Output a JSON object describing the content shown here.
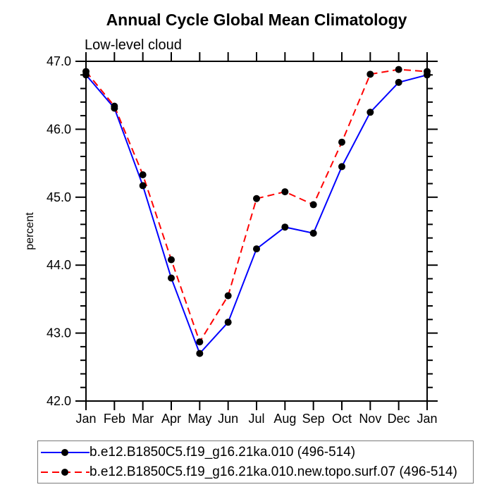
{
  "chart": {
    "title": "Annual Cycle Global Mean Climatology",
    "subtitle": "Low-level cloud",
    "ylabel": "percent"
  },
  "legend": {
    "items": [
      {
        "label": "b.e12.B1850C5.f19_g16.21ka.010 (496-514)",
        "color": "#0000ff",
        "line_style": "solid",
        "marker": "filled-circle"
      },
      {
        "label": "b.e12.B1850C5.f19_g16.21ka.010.new.topo.surf.07 (496-514)",
        "color": "#ff0000",
        "line_style": "dashed",
        "marker": "filled-circle"
      }
    ]
  },
  "chart_data": {
    "type": "line",
    "title": "Annual Cycle Global Mean Climatology",
    "subtitle": "Low-level cloud",
    "xlabel": "",
    "ylabel": "percent",
    "categories": [
      "Jan",
      "Feb",
      "Mar",
      "Apr",
      "May",
      "Jun",
      "Jul",
      "Aug",
      "Sep",
      "Oct",
      "Nov",
      "Dec",
      "Jan"
    ],
    "series": [
      {
        "name": "b.e12.B1850C5.f19_g16.21ka.010 (496-514)",
        "color": "#0000ff",
        "style": "solid",
        "values": [
          46.8,
          46.31,
          45.17,
          43.81,
          42.7,
          43.16,
          44.24,
          44.56,
          44.47,
          45.45,
          46.25,
          46.69,
          46.8
        ]
      },
      {
        "name": "b.e12.B1850C5.f19_g16.21ka.010.new.topo.surf.07 (496-514)",
        "color": "#ff0000",
        "style": "dashed",
        "values": [
          46.85,
          46.34,
          45.33,
          44.08,
          42.87,
          43.55,
          44.98,
          45.08,
          44.89,
          45.81,
          46.81,
          46.88,
          46.85
        ]
      }
    ],
    "ylim": [
      42.0,
      47.0
    ],
    "y_major_ticks": [
      42.0,
      43.0,
      44.0,
      45.0,
      46.0,
      47.0
    ],
    "y_tick_labels": [
      "42.0",
      "43.0",
      "44.0",
      "45.0",
      "46.0",
      "47.0"
    ],
    "y_minor_step": 0.2,
    "marker_color": "#000000",
    "axis_color": "#000000",
    "grid": false,
    "legend_position": "bottom-left"
  }
}
